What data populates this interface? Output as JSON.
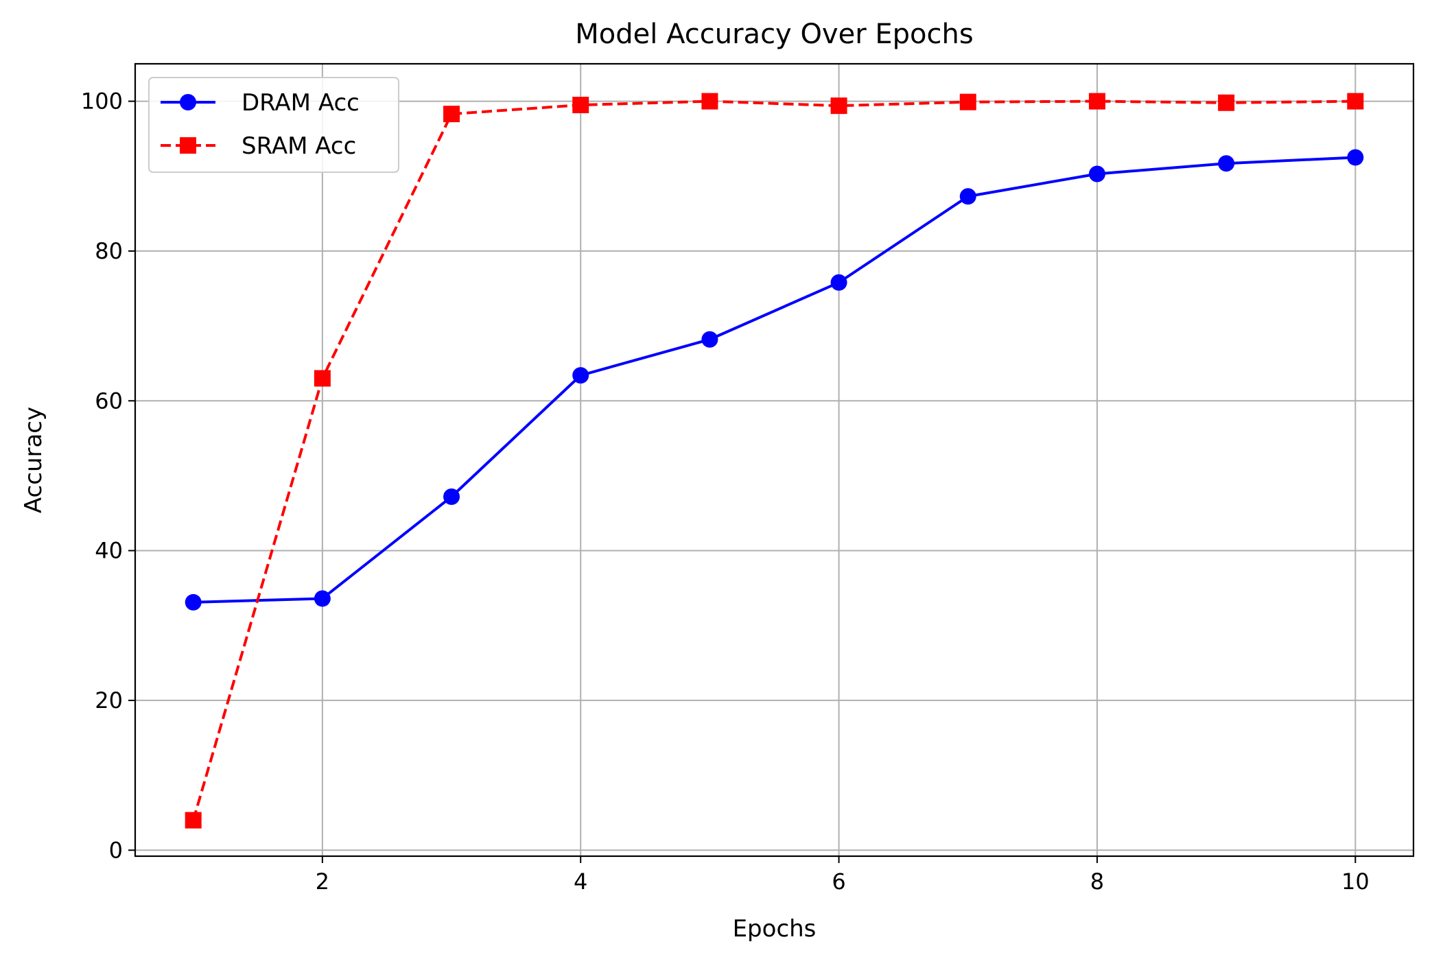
{
  "chart_data": {
    "type": "line",
    "title": "Model Accuracy Over Epochs",
    "xlabel": "Epochs",
    "ylabel": "Accuracy",
    "x": [
      1,
      2,
      3,
      4,
      5,
      6,
      7,
      8,
      9,
      10
    ],
    "xlim": [
      0.55,
      10.45
    ],
    "ylim": [
      -0.8,
      105
    ],
    "xticks": [
      2,
      4,
      6,
      8,
      10
    ],
    "yticks": [
      0,
      20,
      40,
      60,
      80,
      100
    ],
    "grid": true,
    "legend_position": "upper-left",
    "series": [
      {
        "name": "DRAM Acc",
        "color": "#0000ff",
        "linestyle": "solid",
        "marker": "circle",
        "values": [
          33.1,
          33.6,
          47.2,
          63.4,
          68.2,
          75.8,
          87.3,
          90.3,
          91.7,
          92.5
        ]
      },
      {
        "name": "SRAM Acc",
        "color": "#ff0000",
        "linestyle": "dashed",
        "marker": "square",
        "values": [
          4.0,
          63.0,
          98.3,
          99.5,
          100.0,
          99.4,
          99.9,
          100.0,
          99.8,
          100.0
        ]
      }
    ]
  }
}
